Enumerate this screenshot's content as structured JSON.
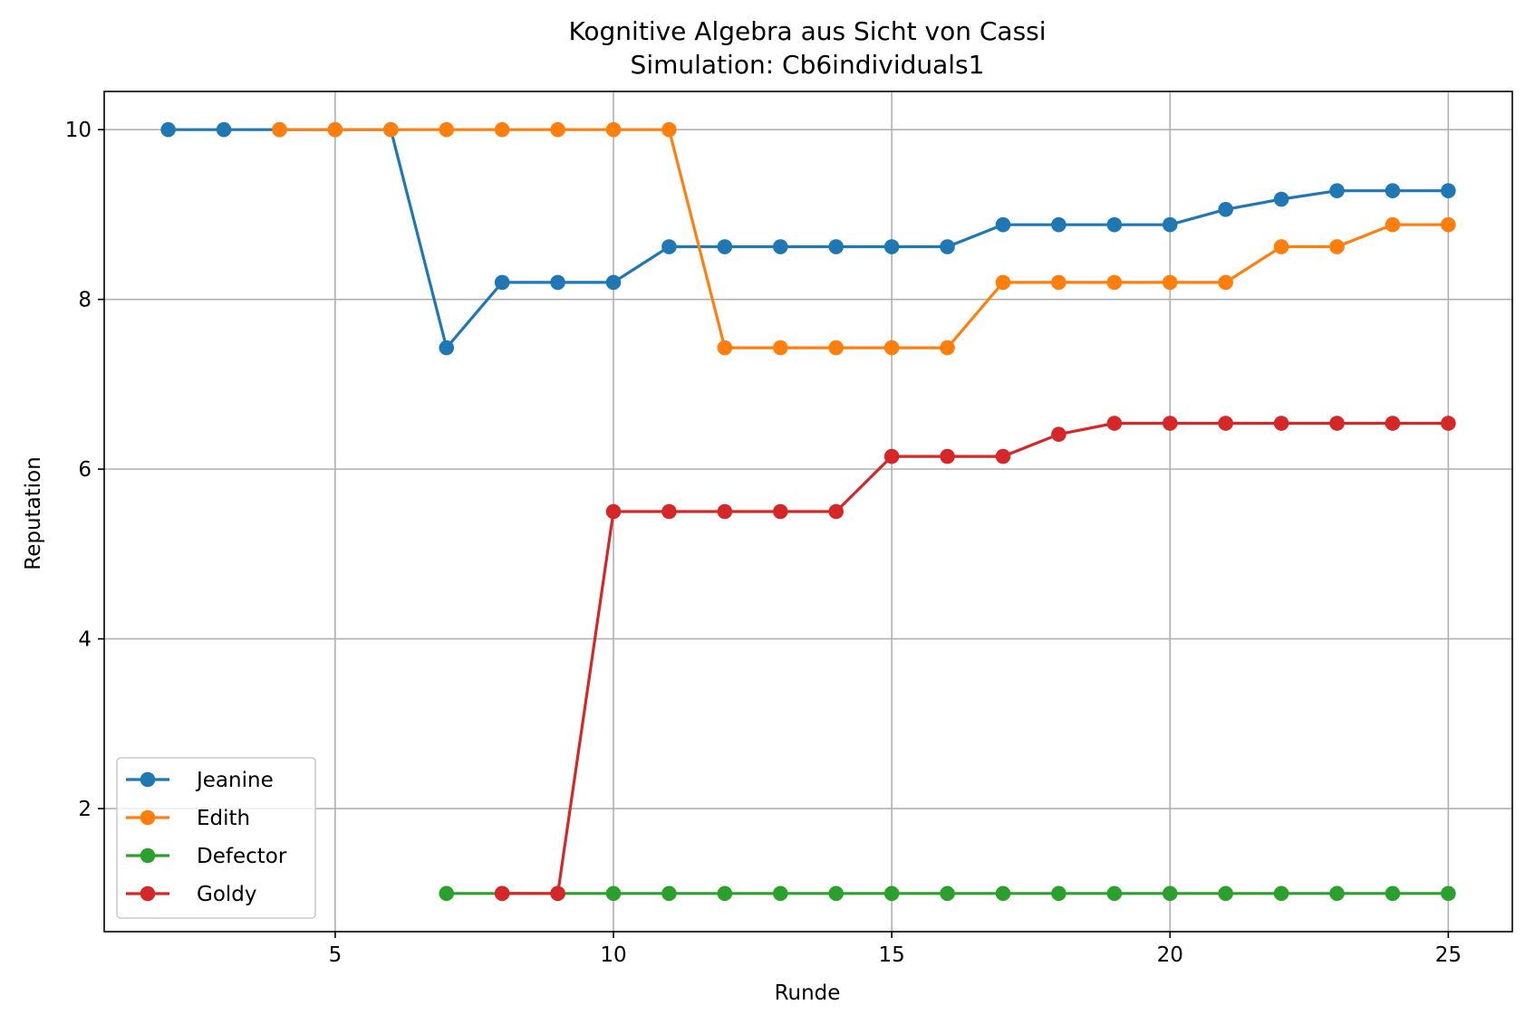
{
  "chart_data": {
    "type": "line",
    "title": "Kognitive Algebra aus Sicht von Cassi",
    "subtitle": "Simulation: Cb6individuals1",
    "xlabel": "Runde",
    "ylabel": "Reputation",
    "xlim": [
      0.85,
      26.15
    ],
    "ylim": [
      0.55,
      10.45
    ],
    "xticks": [
      5,
      10,
      15,
      20,
      25
    ],
    "yticks": [
      2,
      4,
      6,
      8,
      10
    ],
    "grid": true,
    "legend_position": "lower-left",
    "series": [
      {
        "name": "Jeanine",
        "color": "#1f77b4",
        "x": [
          2,
          3,
          4,
          5,
          6,
          7,
          8,
          9,
          10,
          11,
          12,
          13,
          14,
          15,
          16,
          17,
          18,
          19,
          20,
          21,
          22,
          23,
          24,
          25
        ],
        "y": [
          10,
          10,
          10,
          10,
          10,
          7.43,
          8.2,
          8.2,
          8.2,
          8.62,
          8.62,
          8.62,
          8.62,
          8.62,
          8.62,
          8.88,
          8.88,
          8.88,
          8.88,
          9.06,
          9.18,
          9.28,
          9.28,
          9.28
        ]
      },
      {
        "name": "Edith",
        "color": "#ff7f0e",
        "x": [
          4,
          5,
          6,
          7,
          8,
          9,
          10,
          11,
          12,
          13,
          14,
          15,
          16,
          17,
          18,
          19,
          20,
          21,
          22,
          23,
          24,
          25
        ],
        "y": [
          10,
          10,
          10,
          10,
          10,
          10,
          10,
          10,
          7.43,
          7.43,
          7.43,
          7.43,
          7.43,
          8.2,
          8.2,
          8.2,
          8.2,
          8.2,
          8.62,
          8.62,
          8.88,
          8.88
        ]
      },
      {
        "name": "Defector",
        "color": "#2ca02c",
        "x": [
          7,
          8,
          9,
          10,
          11,
          12,
          13,
          14,
          15,
          16,
          17,
          18,
          19,
          20,
          21,
          22,
          23,
          24,
          25
        ],
        "y": [
          1,
          1,
          1,
          1,
          1,
          1,
          1,
          1,
          1,
          1,
          1,
          1,
          1,
          1,
          1,
          1,
          1,
          1,
          1
        ]
      },
      {
        "name": "Goldy",
        "color": "#d62728",
        "x": [
          8,
          9,
          10,
          11,
          12,
          13,
          14,
          15,
          16,
          17,
          18,
          19,
          20,
          21,
          22,
          23,
          24,
          25
        ],
        "y": [
          1,
          1,
          5.5,
          5.5,
          5.5,
          5.5,
          5.5,
          6.15,
          6.15,
          6.15,
          6.41,
          6.54,
          6.54,
          6.54,
          6.54,
          6.54,
          6.54,
          6.54
        ]
      }
    ]
  }
}
